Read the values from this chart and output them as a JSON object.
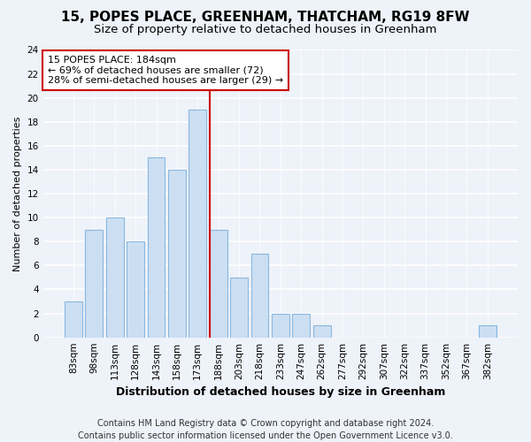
{
  "title": "15, POPES PLACE, GREENHAM, THATCHAM, RG19 8FW",
  "subtitle": "Size of property relative to detached houses in Greenham",
  "xlabel": "Distribution of detached houses by size in Greenham",
  "ylabel": "Number of detached properties",
  "bar_labels": [
    "83sqm",
    "98sqm",
    "113sqm",
    "128sqm",
    "143sqm",
    "158sqm",
    "173sqm",
    "188sqm",
    "203sqm",
    "218sqm",
    "233sqm",
    "247sqm",
    "262sqm",
    "277sqm",
    "292sqm",
    "307sqm",
    "322sqm",
    "337sqm",
    "352sqm",
    "367sqm",
    "382sqm"
  ],
  "bar_values": [
    3,
    9,
    10,
    8,
    15,
    14,
    19,
    9,
    5,
    7,
    2,
    2,
    1,
    0,
    0,
    0,
    0,
    0,
    0,
    0,
    1
  ],
  "bar_color": "#ccdff2",
  "bar_edge_color": "#88b8e0",
  "marker_index": 7,
  "marker_color": "#cc0000",
  "annotation_title": "15 POPES PLACE: 184sqm",
  "annotation_line1": "← 69% of detached houses are smaller (72)",
  "annotation_line2": "28% of semi-detached houses are larger (29) →",
  "annotation_box_color": "#ffffff",
  "annotation_box_edge": "#cc0000",
  "ylim": [
    0,
    24
  ],
  "yticks": [
    0,
    2,
    4,
    6,
    8,
    10,
    12,
    14,
    16,
    18,
    20,
    22,
    24
  ],
  "footer_line1": "Contains HM Land Registry data © Crown copyright and database right 2024.",
  "footer_line2": "Contains public sector information licensed under the Open Government Licence v3.0.",
  "background_color": "#eef2f9",
  "plot_bg_color": "#eef2f9",
  "title_fontsize": 11,
  "subtitle_fontsize": 9.5,
  "xlabel_fontsize": 9,
  "ylabel_fontsize": 8,
  "tick_fontsize": 7.5,
  "annotation_fontsize": 8,
  "footer_fontsize": 7
}
